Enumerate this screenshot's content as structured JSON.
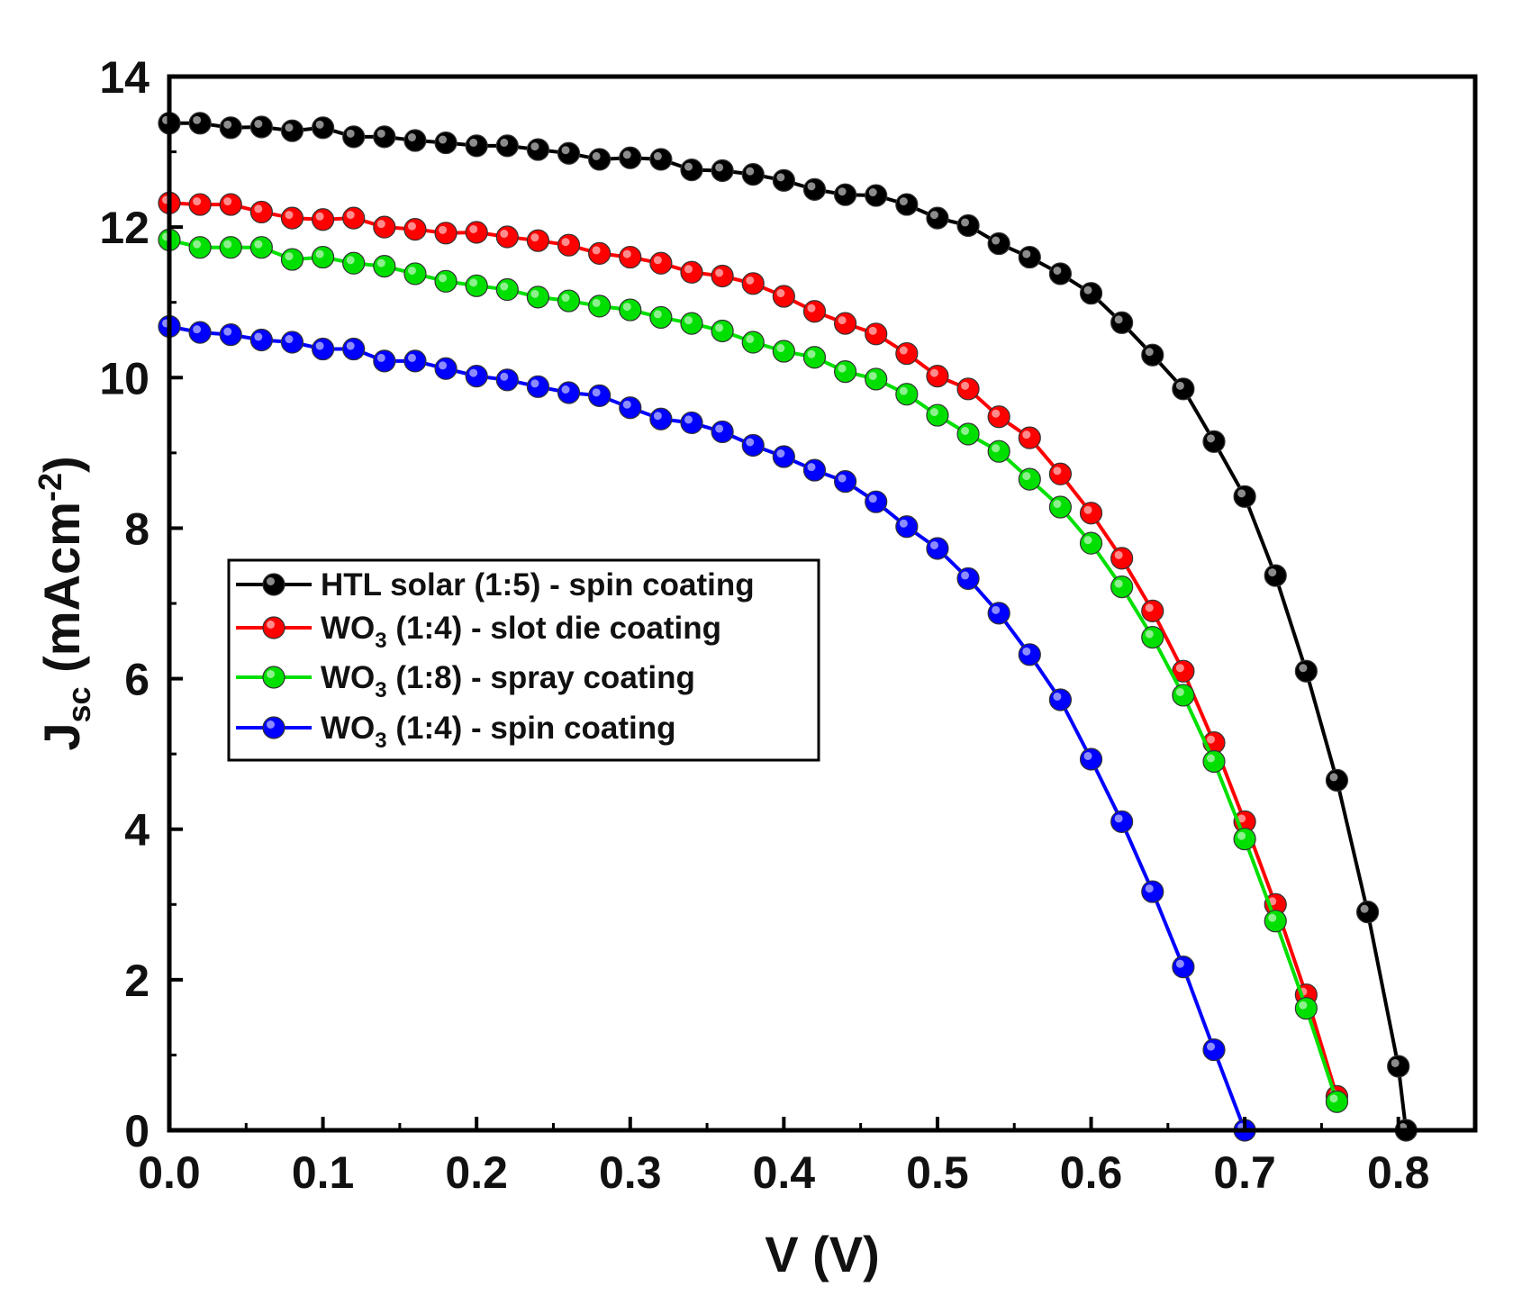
{
  "chart_data": {
    "type": "line",
    "title": "",
    "xlabel": "V (V)",
    "ylabel": {
      "main": "J",
      "sub": "sc",
      "unit_open": " (mAcm",
      "unit_sup": "-2",
      "unit_close": ")"
    },
    "xlim": [
      0.0,
      0.85
    ],
    "ylim": [
      0,
      14
    ],
    "x_ticks": [
      0.0,
      0.1,
      0.2,
      0.3,
      0.4,
      0.5,
      0.6,
      0.7,
      0.8
    ],
    "x_tick_labels": [
      "0.0",
      "0.1",
      "0.2",
      "0.3",
      "0.4",
      "0.5",
      "0.6",
      "0.7",
      "0.8"
    ],
    "y_ticks": [
      0,
      2,
      4,
      6,
      8,
      10,
      12,
      14
    ],
    "y_tick_labels": [
      "0",
      "2",
      "4",
      "6",
      "8",
      "10",
      "12",
      "14"
    ],
    "grid": false,
    "legend_position": "center-left",
    "series": [
      {
        "name": "HTL solar (1:5) - spin coating",
        "legend": {
          "pre": "HTL solar (1:5) - spin coating",
          "sub": "",
          "post": ""
        },
        "color": "#000000",
        "x": [
          0,
          0.02,
          0.04,
          0.06,
          0.08,
          0.1,
          0.12,
          0.14,
          0.16,
          0.18,
          0.2,
          0.22,
          0.24,
          0.26,
          0.28,
          0.3,
          0.32,
          0.34,
          0.36,
          0.38,
          0.4,
          0.42,
          0.44,
          0.46,
          0.48,
          0.5,
          0.52,
          0.54,
          0.56,
          0.58,
          0.6,
          0.62,
          0.64,
          0.66,
          0.68,
          0.7,
          0.72,
          0.74,
          0.76,
          0.78,
          0.8,
          0.805
        ],
        "y": [
          13.38,
          13.38,
          13.32,
          13.33,
          13.28,
          13.32,
          13.2,
          13.2,
          13.15,
          13.12,
          13.08,
          13.08,
          13.03,
          12.98,
          12.9,
          12.92,
          12.9,
          12.76,
          12.75,
          12.7,
          12.62,
          12.5,
          12.43,
          12.42,
          12.3,
          12.12,
          12.02,
          11.78,
          11.6,
          11.38,
          11.12,
          10.73,
          10.3,
          9.85,
          9.15,
          8.42,
          7.37,
          6.1,
          4.65,
          2.9,
          0.85,
          0
        ]
      },
      {
        "name": "WO3 (1:4) - slot die coating",
        "legend": {
          "pre": "WO",
          "sub": "3",
          "post": " (1:4) - slot die coating"
        },
        "color": "#ff0000",
        "x": [
          0,
          0.02,
          0.04,
          0.06,
          0.08,
          0.1,
          0.12,
          0.14,
          0.16,
          0.18,
          0.2,
          0.22,
          0.24,
          0.26,
          0.28,
          0.3,
          0.32,
          0.34,
          0.36,
          0.38,
          0.4,
          0.42,
          0.44,
          0.46,
          0.48,
          0.5,
          0.52,
          0.54,
          0.56,
          0.58,
          0.6,
          0.62,
          0.64,
          0.66,
          0.68,
          0.7,
          0.72,
          0.74,
          0.76
        ],
        "y": [
          12.32,
          12.3,
          12.3,
          12.2,
          12.12,
          12.1,
          12.12,
          12.0,
          11.97,
          11.92,
          11.93,
          11.87,
          11.82,
          11.76,
          11.65,
          11.6,
          11.52,
          11.4,
          11.35,
          11.25,
          11.08,
          10.88,
          10.72,
          10.58,
          10.32,
          10.02,
          9.85,
          9.48,
          9.2,
          8.72,
          8.2,
          7.6,
          6.9,
          6.1,
          5.15,
          4.1,
          3.0,
          1.8,
          0.45
        ]
      },
      {
        "name": "WO3 (1:8) - spray coating",
        "legend": {
          "pre": "WO",
          "sub": "3",
          "post": " (1:8) - spray coating"
        },
        "color": "#00e000",
        "x": [
          0,
          0.02,
          0.04,
          0.06,
          0.08,
          0.1,
          0.12,
          0.14,
          0.16,
          0.18,
          0.2,
          0.22,
          0.24,
          0.26,
          0.28,
          0.3,
          0.32,
          0.34,
          0.36,
          0.38,
          0.4,
          0.42,
          0.44,
          0.46,
          0.48,
          0.5,
          0.52,
          0.54,
          0.56,
          0.58,
          0.6,
          0.62,
          0.64,
          0.66,
          0.68,
          0.7,
          0.72,
          0.74,
          0.76
        ],
        "y": [
          11.83,
          11.73,
          11.73,
          11.73,
          11.57,
          11.6,
          11.52,
          11.48,
          11.38,
          11.28,
          11.22,
          11.17,
          11.07,
          11.02,
          10.95,
          10.9,
          10.8,
          10.72,
          10.62,
          10.47,
          10.35,
          10.27,
          10.08,
          9.98,
          9.78,
          9.5,
          9.25,
          9.02,
          8.65,
          8.28,
          7.8,
          7.22,
          6.55,
          5.78,
          4.9,
          3.87,
          2.78,
          1.62,
          0.38
        ]
      },
      {
        "name": "WO3 (1:4) - spin coating",
        "legend": {
          "pre": "WO",
          "sub": "3",
          "post": " (1:4) - spin coating"
        },
        "color": "#0000ff",
        "x": [
          0,
          0.02,
          0.04,
          0.06,
          0.08,
          0.1,
          0.12,
          0.14,
          0.16,
          0.18,
          0.2,
          0.22,
          0.24,
          0.26,
          0.28,
          0.3,
          0.32,
          0.34,
          0.36,
          0.38,
          0.4,
          0.42,
          0.44,
          0.46,
          0.48,
          0.5,
          0.52,
          0.54,
          0.56,
          0.58,
          0.6,
          0.62,
          0.64,
          0.66,
          0.68,
          0.7
        ],
        "y": [
          10.68,
          10.6,
          10.57,
          10.5,
          10.47,
          10.38,
          10.38,
          10.22,
          10.22,
          10.12,
          10.02,
          9.97,
          9.88,
          9.8,
          9.76,
          9.6,
          9.45,
          9.4,
          9.28,
          9.1,
          8.95,
          8.77,
          8.62,
          8.35,
          8.02,
          7.73,
          7.33,
          6.87,
          6.32,
          5.72,
          4.93,
          4.1,
          3.17,
          2.17,
          1.07,
          0
        ]
      }
    ]
  }
}
